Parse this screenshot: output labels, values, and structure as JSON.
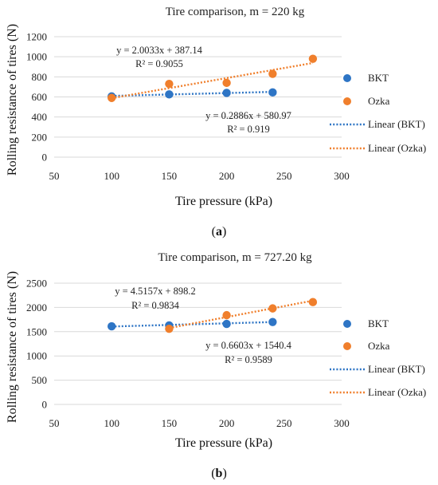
{
  "colors": {
    "bkt": "#2e75c5",
    "ozka": "#f07f2c"
  },
  "chart_data": [
    {
      "type": "scatter",
      "title": "Tire comparison, m = 220 kg",
      "xlabel": "Tire pressure (kPa)",
      "ylabel": "Rolling resistance of tires (N)",
      "xlim": [
        50,
        300
      ],
      "ylim": [
        0,
        1200
      ],
      "xticks": [
        50,
        100,
        150,
        200,
        250,
        300
      ],
      "yticks": [
        0,
        200,
        400,
        600,
        800,
        1000,
        1200
      ],
      "series": [
        {
          "name": "BKT",
          "x": [
            100,
            150,
            200,
            240
          ],
          "y": [
            605,
            625,
            640,
            645
          ]
        },
        {
          "name": "Ozka",
          "x": [
            100,
            150,
            200,
            240,
            275
          ],
          "y": [
            590,
            730,
            740,
            830,
            980
          ]
        }
      ],
      "trendlines": [
        {
          "name": "Linear (BKT)",
          "slope": 0.2886,
          "intercept": 580.97,
          "x_range": [
            100,
            240
          ]
        },
        {
          "name": "Linear (Ozka)",
          "slope": 2.0033,
          "intercept": 387.14,
          "x_range": [
            100,
            275
          ]
        }
      ],
      "annotations": [
        {
          "eq": "y = 2.0033x + 387.14",
          "r2": "R² = 0.9055"
        },
        {
          "eq": "y = 0.2886x + 580.97",
          "r2": "R² = 0.919"
        }
      ],
      "legend_position": "right",
      "caption_label": "a"
    },
    {
      "type": "scatter",
      "title": "Tire comparison, m = 727.20 kg",
      "xlabel": "Tire pressure (kPa)",
      "ylabel": "Rolling resistance of tires (N)",
      "xlim": [
        50,
        300
      ],
      "ylim": [
        0,
        2500
      ],
      "xticks": [
        50,
        100,
        150,
        200,
        250,
        300
      ],
      "yticks": [
        0,
        500,
        1000,
        1500,
        2000,
        2500
      ],
      "series": [
        {
          "name": "BKT",
          "x": [
            100,
            150,
            200,
            240
          ],
          "y": [
            1610,
            1630,
            1660,
            1700
          ]
        },
        {
          "name": "Ozka",
          "x": [
            150,
            200,
            240,
            275
          ],
          "y": [
            1560,
            1840,
            1980,
            2110
          ]
        }
      ],
      "trendlines": [
        {
          "name": "Linear (BKT)",
          "slope": 0.6603,
          "intercept": 1540.4,
          "x_range": [
            100,
            240
          ]
        },
        {
          "name": "Linear (Ozka)",
          "slope": 4.5157,
          "intercept": 898.2,
          "x_range": [
            150,
            275
          ]
        }
      ],
      "annotations": [
        {
          "eq": "y = 4.5157x + 898.2",
          "r2": "R² = 0.9834"
        },
        {
          "eq": "y = 0.6603x + 1540.4",
          "r2": "R² = 0.9589"
        }
      ],
      "legend_position": "right",
      "caption_label": "b"
    }
  ]
}
